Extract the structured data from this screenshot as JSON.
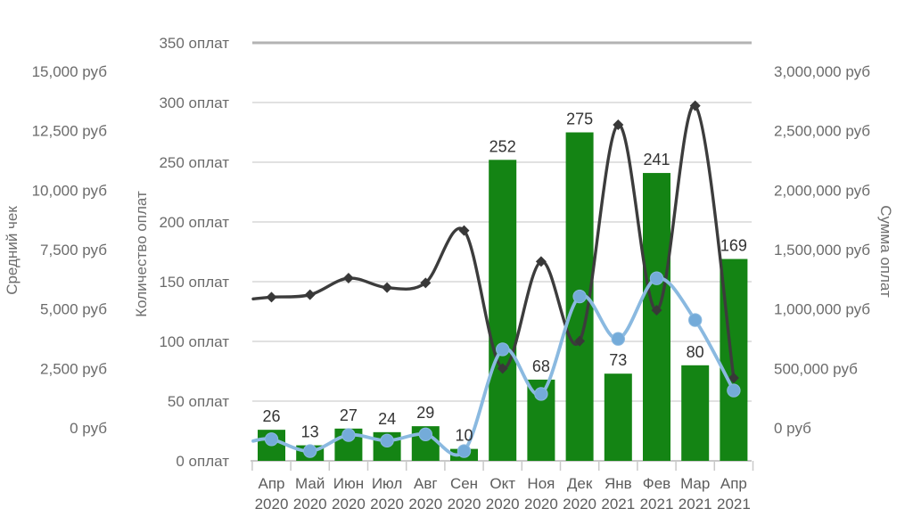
{
  "chart_data": {
    "type": "bar",
    "subtype": "combo-bar-two-lines",
    "background": "#ffffff",
    "grid": "on",
    "legend": "none",
    "categories": [
      {
        "month": "Апр",
        "year": "2020"
      },
      {
        "month": "Май",
        "year": "2020"
      },
      {
        "month": "Июн",
        "year": "2020"
      },
      {
        "month": "Июл",
        "year": "2020"
      },
      {
        "month": "Авг",
        "year": "2020"
      },
      {
        "month": "Сен",
        "year": "2020"
      },
      {
        "month": "Окт",
        "year": "2020"
      },
      {
        "month": "Ноя",
        "year": "2020"
      },
      {
        "month": "Дек",
        "year": "2020"
      },
      {
        "month": "Янв",
        "year": "2021"
      },
      {
        "month": "Фев",
        "year": "2021"
      },
      {
        "month": "Мар",
        "year": "2021"
      },
      {
        "month": "Апр",
        "year": "2021"
      }
    ],
    "series": [
      {
        "name": "Количество оплат",
        "type": "bar",
        "axis": "count",
        "color": "#148414",
        "values": [
          26,
          13,
          27,
          24,
          29,
          10,
          252,
          68,
          275,
          73,
          241,
          80,
          169
        ],
        "data_labels": [
          "26",
          "13",
          "27",
          "24",
          "29",
          "10",
          "252",
          "68",
          "275",
          "73",
          "241",
          "80",
          "169"
        ]
      },
      {
        "name": "Средний чек",
        "type": "line",
        "axis": "avg",
        "color": "#3c3c3c",
        "marker": "diamond",
        "marker_color": "#383838",
        "values": [
          5500,
          5600,
          6300,
          5900,
          6100,
          8300,
          2500,
          7000,
          3650,
          12750,
          4950,
          13550,
          2100
        ]
      },
      {
        "name": "Сумма оплат",
        "type": "line",
        "axis": "sum",
        "color": "#8ab9e0",
        "marker": "circle",
        "marker_color": "#74abd9",
        "values": [
          155000,
          70000,
          185000,
          145000,
          190000,
          70000,
          800000,
          480000,
          1180000,
          875000,
          1310000,
          1010000,
          505000
        ]
      }
    ],
    "axes": {
      "avg": {
        "title": "Средний чек",
        "side": "left-outer",
        "min": 0,
        "max": 15000,
        "tick_values": [
          0,
          2500,
          5000,
          7500,
          10000,
          12500,
          15000
        ],
        "tick_labels": [
          "0 руб",
          "2,500 руб",
          "5,000 руб",
          "7,500 руб",
          "10,000 руб",
          "12,500 руб",
          "15,000 руб"
        ]
      },
      "count": {
        "title": "Количество оплат",
        "side": "left-inner",
        "min": 0,
        "max": 350,
        "tick_values": [
          0,
          50,
          100,
          150,
          200,
          250,
          300,
          350
        ],
        "tick_labels": [
          "0 оплат",
          "50 оплат",
          "100 оплат",
          "150 оплат",
          "200 оплат",
          "250 оплат",
          "300 оплат",
          "350 оплат"
        ]
      },
      "sum": {
        "title": "Сумма оплат",
        "side": "right",
        "min": 0,
        "max": 3000000,
        "tick_values": [
          0,
          500000,
          1000000,
          1500000,
          2000000,
          2500000,
          3000000
        ],
        "tick_labels": [
          "0 руб",
          "500,000 руб",
          "1,000,000 руб",
          "1,500,000 руб",
          "2,000,000 руб",
          "2,500,000 руб",
          "3,000,000 руб"
        ]
      }
    },
    "colors": {
      "gridline": "#d7d7d7",
      "top_gridline": "#b3b3b3",
      "axis_line": "#c9c9c9",
      "tick_text": "#6b6b6b",
      "x_text": "#5c5c5c",
      "bar_label_text": "#333333"
    }
  }
}
